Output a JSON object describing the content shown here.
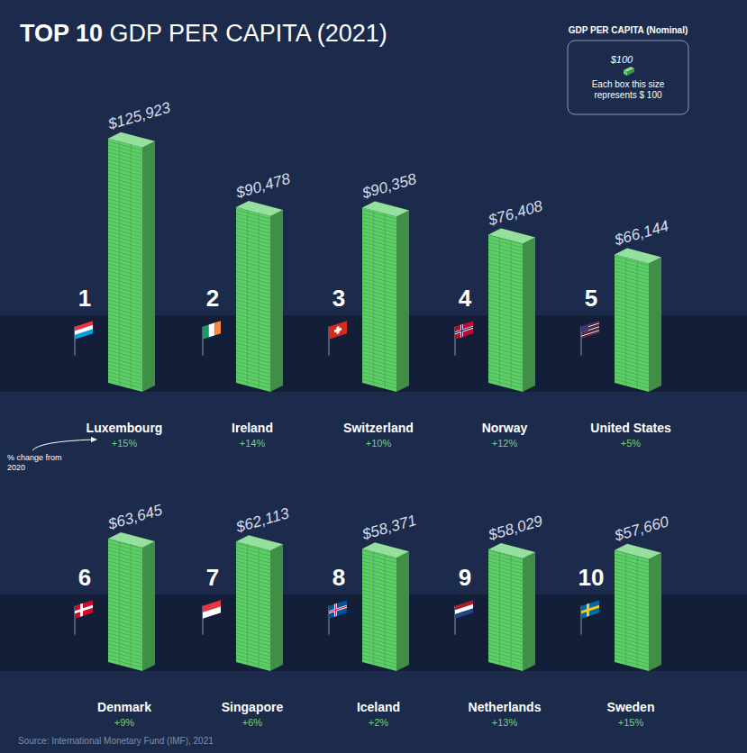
{
  "chart_data": {
    "type": "bar",
    "title": "TOP 10 GDP PER CAPITA (2021)",
    "legend_title": "GDP PER CAPITA (Nominal)",
    "legend_box_label": "$100",
    "legend_box_text": "Each box this size represents $ 100",
    "annotation": "% change from 2020",
    "source": "Source: International Monetary Fund (IMF), 2021",
    "categories": [
      "Luxembourg",
      "Ireland",
      "Switzerland",
      "Norway",
      "United States",
      "Denmark",
      "Singapore",
      "Iceland",
      "Netherlands",
      "Sweden"
    ],
    "values": [
      125923,
      90478,
      90358,
      76408,
      66144,
      63645,
      62113,
      58371,
      58029,
      57660
    ],
    "value_labels": [
      "$125,923",
      "$90,478",
      "$90,358",
      "$76,408",
      "$66,144",
      "$63,645",
      "$62,113",
      "$58,371",
      "$58,029",
      "$57,660"
    ],
    "ranks": [
      1,
      2,
      3,
      4,
      5,
      6,
      7,
      8,
      9,
      10
    ],
    "change_from_2020": [
      15,
      14,
      10,
      12,
      5,
      9,
      6,
      2,
      13,
      15
    ],
    "change_labels": [
      "+15%",
      "+14%",
      "+10%",
      "+12%",
      "+5%",
      "+9%",
      "+6%",
      "+2%",
      "+13%",
      "+15%"
    ],
    "color": "#5ccf66",
    "ylim": [
      0,
      130000
    ],
    "data_labels": true,
    "tick_labels": false,
    "grid": false
  }
}
